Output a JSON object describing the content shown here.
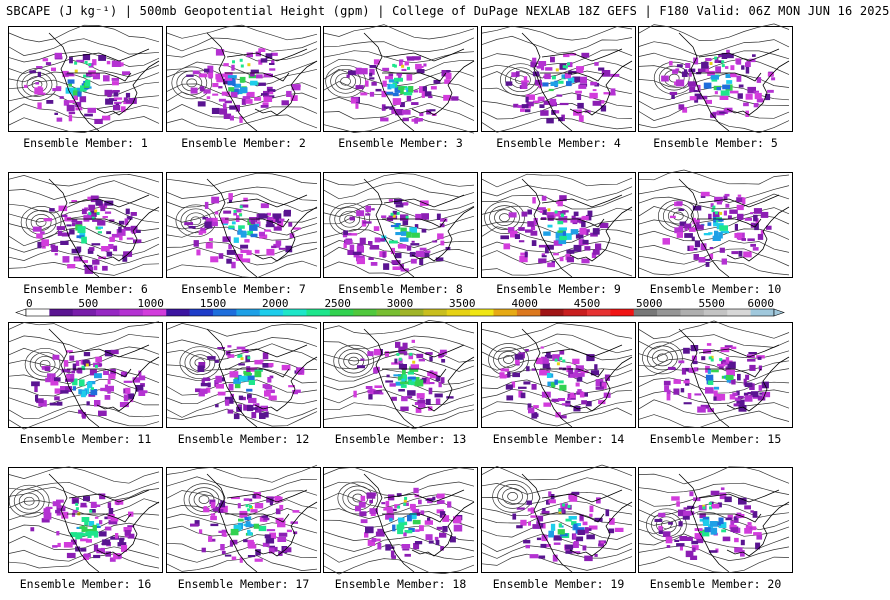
{
  "header": {
    "title": "SBCAPE (J kg⁻¹) | 500mb Geopotential Height (gpm) | College of DuPage NEXLAB 18Z GEFS | F180 Valid: 06Z MON JUN 16 2025"
  },
  "members": [
    {
      "label": "Ensemble Member: 1"
    },
    {
      "label": "Ensemble Member: 2"
    },
    {
      "label": "Ensemble Member: 3"
    },
    {
      "label": "Ensemble Member: 4"
    },
    {
      "label": "Ensemble Member: 5"
    },
    {
      "label": "Ensemble Member: 6"
    },
    {
      "label": "Ensemble Member: 7"
    },
    {
      "label": "Ensemble Member: 8"
    },
    {
      "label": "Ensemble Member: 9"
    },
    {
      "label": "Ensemble Member: 10"
    },
    {
      "label": "Ensemble Member: 11"
    },
    {
      "label": "Ensemble Member: 12"
    },
    {
      "label": "Ensemble Member: 13"
    },
    {
      "label": "Ensemble Member: 14"
    },
    {
      "label": "Ensemble Member: 15"
    },
    {
      "label": "Ensemble Member: 16"
    },
    {
      "label": "Ensemble Member: 17"
    },
    {
      "label": "Ensemble Member: 18"
    },
    {
      "label": "Ensemble Member: 19"
    },
    {
      "label": "Ensemble Member: 20"
    }
  ],
  "colorbar": {
    "ticks": [
      "0",
      "500",
      "1000",
      "1500",
      "2000",
      "2500",
      "3000",
      "3500",
      "4000",
      "4500",
      "5000",
      "5500",
      "6000"
    ],
    "colors": [
      "#ffffff",
      "#5a1491",
      "#781eaa",
      "#9628c3",
      "#b432d2",
      "#d23cdc",
      "#3c14a0",
      "#1e3cc8",
      "#1e6edc",
      "#1ea0e6",
      "#1ecdeb",
      "#1ee6c8",
      "#1ee68c",
      "#32d250",
      "#50c83c",
      "#78be32",
      "#a0b428",
      "#c8be1e",
      "#e6d214",
      "#f0e614",
      "#e6aa14",
      "#dc781e",
      "#a01414",
      "#c81e1e",
      "#e63232",
      "#f01414",
      "#787878",
      "#969696",
      "#afafaf",
      "#c3c3c3",
      "#d7d7d7",
      "#a0c8dc"
    ]
  }
}
